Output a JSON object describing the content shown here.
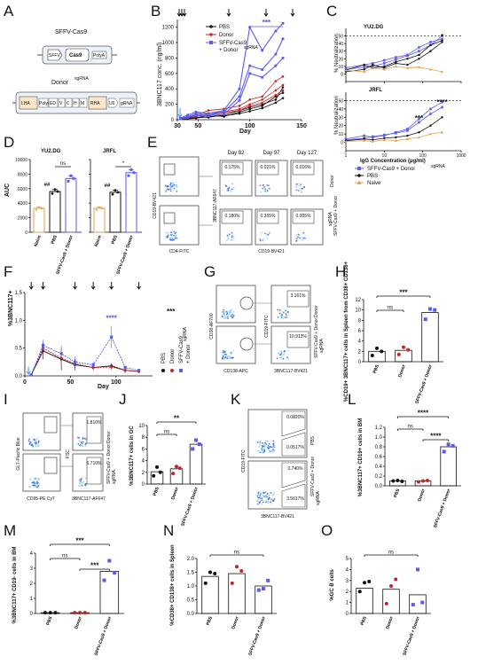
{
  "colors": {
    "naive": "#e7a04b",
    "pbs": "#111111",
    "donor": "#c0262b",
    "sgrna": "#5b5bf0",
    "sgrna_light": "#8a8af5",
    "gate": "#444444"
  },
  "panels": {
    "A": "A",
    "B": "B",
    "C": "C",
    "D": "D",
    "E": "E",
    "F": "F",
    "G": "G",
    "H": "H",
    "I": "I",
    "J": "J",
    "K": "K",
    "L": "L",
    "M": "M",
    "N": "N",
    "O": "O"
  },
  "panelA": {
    "sffv_title": "SFFV-Cas9",
    "sffv_parts": [
      "SFFV",
      "Cas9",
      "PolyA"
    ],
    "donor_title": "Donor",
    "donor_sup": "sgRNA",
    "donor_parts": [
      "LHA",
      "PolyA",
      "ED",
      "V",
      "C",
      "H",
      "M",
      "RHA",
      "U6",
      "gRNA"
    ]
  },
  "chart_data": [
    {
      "panel": "B",
      "type": "line",
      "ylabel": "3BNC117 conc. (ng/ml)",
      "xlabel": "Day",
      "xlim": [
        30,
        150
      ],
      "ylim": [
        0,
        1300
      ],
      "xticks": [
        "30",
        "50",
        "100",
        "150"
      ],
      "yticks": [
        "0",
        "200",
        "400",
        "600",
        "800",
        "1000",
        "1200"
      ],
      "legend": [
        "PBS",
        "Donor",
        "SFFV-Cas9",
        "+ Donor"
      ],
      "legend_sup": "sgRNA",
      "sig": "***",
      "series": [
        {
          "group": "pbs",
          "x": [
            33,
            40,
            48,
            60,
            75,
            90,
            100,
            112,
            125,
            132
          ],
          "y": [
            20,
            25,
            20,
            60,
            40,
            100,
            140,
            180,
            300,
            350
          ]
        },
        {
          "group": "pbs",
          "x": [
            33,
            40,
            48,
            60,
            75,
            90,
            100,
            112,
            125,
            132
          ],
          "y": [
            15,
            20,
            30,
            30,
            60,
            120,
            160,
            200,
            260,
            420
          ]
        },
        {
          "group": "pbs",
          "x": [
            33,
            40,
            48,
            60,
            75,
            90,
            100,
            112,
            125,
            132
          ],
          "y": [
            10,
            10,
            20,
            40,
            50,
            80,
            110,
            150,
            220,
            280
          ]
        },
        {
          "group": "donor",
          "x": [
            33,
            40,
            48,
            60,
            75,
            90,
            100,
            112,
            125,
            132
          ],
          "y": [
            20,
            40,
            60,
            120,
            140,
            180,
            260,
            300,
            500,
            560
          ]
        },
        {
          "group": "donor",
          "x": [
            33,
            40,
            48,
            60,
            75,
            90,
            100,
            112,
            125,
            132
          ],
          "y": [
            10,
            30,
            50,
            80,
            100,
            140,
            200,
            260,
            380,
            450
          ]
        },
        {
          "group": "donor",
          "x": [
            33,
            40,
            48,
            60,
            75,
            90,
            100,
            112,
            125,
            132
          ],
          "y": [
            15,
            25,
            40,
            60,
            90,
            120,
            180,
            220,
            320,
            380
          ]
        },
        {
          "group": "sgrna",
          "x": [
            33,
            40,
            48,
            60,
            75,
            90,
            100,
            112,
            125,
            132
          ],
          "y": [
            20,
            60,
            100,
            80,
            120,
            400,
            1200,
            900,
            1150,
            1250
          ]
        },
        {
          "group": "sgrna",
          "x": [
            33,
            40,
            48,
            60,
            75,
            90,
            100,
            112,
            125,
            132
          ],
          "y": [
            15,
            40,
            80,
            60,
            100,
            300,
            700,
            650,
            850,
            1050
          ]
        },
        {
          "group": "sgrna",
          "x": [
            33,
            40,
            48,
            60,
            75,
            90,
            100,
            112,
            125,
            132
          ],
          "y": [
            10,
            30,
            60,
            50,
            70,
            250,
            600,
            550,
            700,
            800
          ]
        }
      ]
    },
    {
      "panel": "C",
      "type": "line",
      "subplots": [
        {
          "title": "YU2.DG",
          "ylabel": "% Neutralization",
          "ylim": [
            -10,
            60
          ],
          "yticks": [
            "0",
            "10",
            "20",
            "30",
            "40",
            "50"
          ],
          "sig": "*"
        },
        {
          "title": "JRFL",
          "ylabel": "% Neutralization",
          "ylim": [
            -10,
            60
          ],
          "yticks": [
            "0",
            "10",
            "20",
            "30",
            "40",
            "50"
          ],
          "sig": [
            "***",
            "****"
          ]
        }
      ],
      "xlabel": "IgG Concentration (µg/ml)",
      "xticks": [
        "1",
        "10",
        "100",
        "1000"
      ],
      "legend": [
        "SFFV-Cas9 + Donor",
        "PBS",
        "Naive"
      ],
      "legend_sup": "sgRNA"
    },
    {
      "panel": "D",
      "type": "bar",
      "ylabel": "AUC",
      "subplots": [
        {
          "title": "YU2.DG",
          "categories": [
            "Naive",
            "PBS",
            "SFFV-Cas9 + Donor"
          ],
          "values": [
            3300,
            5600,
            7400
          ],
          "sig": [
            "##",
            "ns"
          ]
        },
        {
          "title": "JRFL",
          "categories": [
            "Naive",
            "PBS",
            "SFFV-Cas9 + Donor"
          ],
          "values": [
            3300,
            5500,
            8200
          ],
          "sig": [
            "##",
            "*"
          ]
        }
      ],
      "yticks": [
        "0",
        "2000",
        "4000",
        "6000",
        "8000",
        "10000"
      ],
      "ylim": [
        0,
        10000
      ]
    },
    {
      "panel": "F",
      "type": "line",
      "ylabel": "%3BNC117+",
      "xlabel": "Day",
      "xlim": [
        0,
        140
      ],
      "ylim": [
        0,
        1.5
      ],
      "xticks": [
        "0",
        "50",
        "100"
      ],
      "yticks": [
        "0.0",
        "0.5",
        "1.0",
        "1.5"
      ],
      "sig": "****",
      "legend_sig": "***",
      "legend": [
        "PBS",
        "Donor",
        "SFFV-Cas9",
        "+ Donor"
      ],
      "legend_sup": "sgRNA",
      "series": [
        {
          "group": "pbs",
          "x": [
            7,
            20,
            40,
            55,
            75,
            95,
            110,
            125
          ],
          "y": [
            0.02,
            0.45,
            0.3,
            0.2,
            0.15,
            0.18,
            0.1,
            0.08
          ],
          "err": [
            0.02,
            0.15,
            0.2,
            0.1,
            0.05,
            0.05,
            0.05,
            0.03
          ]
        },
        {
          "group": "donor",
          "x": [
            7,
            20,
            40,
            55,
            75,
            95,
            110,
            125
          ],
          "y": [
            0.02,
            0.5,
            0.32,
            0.22,
            0.15,
            0.16,
            0.1,
            0.08
          ],
          "err": [
            0.02,
            0.1,
            0.15,
            0.1,
            0.05,
            0.05,
            0.05,
            0.03
          ]
        },
        {
          "group": "sgrna",
          "x": [
            7,
            20,
            40,
            55,
            75,
            95,
            110,
            125
          ],
          "y": [
            0.02,
            0.55,
            0.4,
            0.25,
            0.2,
            0.7,
            0.15,
            0.1
          ],
          "err": [
            0.02,
            0.1,
            0.15,
            0.1,
            0.05,
            0.2,
            0.05,
            0.03
          ]
        }
      ]
    },
    {
      "panel": "H",
      "type": "bar",
      "ylabel": "%CD19+ 3BNC117+ cells in Spleen from CD38+ CD138+",
      "categories": [
        "PBS",
        "Donor",
        "SFFV-Cas9 + Donor"
      ],
      "values": [
        2.0,
        2.2,
        9.5
      ],
      "points": [
        [
          1.2,
          2.6,
          2.0
        ],
        [
          1.4,
          2.8,
          2.3
        ],
        [
          8.2,
          10.2,
          10.0
        ]
      ],
      "ylim": [
        0,
        12
      ],
      "yticks": [
        "0",
        "2",
        "4",
        "6",
        "8",
        "10",
        "12"
      ],
      "sig": [
        "***",
        "ns"
      ]
    },
    {
      "panel": "J",
      "type": "bar",
      "ylabel": "%3BNC117+ cells in GC",
      "categories": [
        "PBS",
        "Donor",
        "SFFV-Cas9 + Donor"
      ],
      "values": [
        2.1,
        2.6,
        6.8
      ],
      "points": [
        [
          1.4,
          2.9,
          2.0
        ],
        [
          1.8,
          3.0,
          2.7
        ],
        [
          6.0,
          7.5,
          6.8
        ]
      ],
      "ylim": [
        0,
        10
      ],
      "yticks": [
        "0",
        "2",
        "4",
        "6",
        "8",
        "10"
      ],
      "sig": [
        "**",
        "ns"
      ]
    },
    {
      "panel": "L",
      "type": "bar",
      "ylabel": "%3BNC117+ CD19+ cells in BM",
      "categories": [
        "PBS",
        "Donor",
        "SFFV-Cas9 + Donor"
      ],
      "values": [
        0.1,
        0.1,
        0.8
      ],
      "points": [
        [
          0.1,
          0.11,
          0.09
        ],
        [
          0.08,
          0.1,
          0.11
        ],
        [
          0.7,
          0.85,
          0.82
        ]
      ],
      "ylim": [
        0,
        1.2
      ],
      "yticks": [
        "0.0",
        "0.2",
        "0.4",
        "0.6",
        "0.8",
        "1.0",
        "1.2"
      ],
      "sig": [
        "****",
        "ns",
        "****"
      ]
    },
    {
      "panel": "M",
      "type": "bar",
      "ylabel": "%3BNC117+ CD19- cells in BM",
      "categories": [
        "PBS",
        "Donor",
        "SFFV-Cas9 + Donor"
      ],
      "values": [
        0.05,
        0.05,
        2.8
      ],
      "points": [
        [
          0.05,
          0.05,
          0.05
        ],
        [
          0.05,
          0.05,
          0.05
        ],
        [
          2.2,
          3.5,
          2.7
        ]
      ],
      "ylim": [
        0,
        4
      ],
      "yticks": [
        "0",
        "1",
        "2",
        "3",
        "4"
      ],
      "sig": [
        "***",
        "ns",
        "***"
      ]
    },
    {
      "panel": "N",
      "type": "bar",
      "ylabel": "%CD38+ CD138+ cells in Spleen",
      "categories": [
        "PBS",
        "Donor",
        "SFFV-Cas9 + Donor"
      ],
      "values": [
        1.35,
        1.45,
        1.0
      ],
      "points": [
        [
          1.1,
          1.5,
          1.45
        ],
        [
          1.1,
          1.7,
          1.55
        ],
        [
          0.85,
          0.9,
          1.2
        ]
      ],
      "ylim": [
        0,
        2.0
      ],
      "yticks": [
        "0.0",
        "0.5",
        "1.0",
        "1.5",
        "2.0"
      ],
      "sig": [
        "ns"
      ]
    },
    {
      "panel": "O",
      "type": "bar",
      "ylabel": "%GC B cells",
      "categories": [
        "PBS",
        "Donor",
        "SFFV-Cas9 + Donor"
      ],
      "values": [
        2.3,
        2.2,
        1.7
      ],
      "points": [
        [
          2.0,
          2.8,
          2.9
        ],
        [
          0.9,
          2.5,
          3.1
        ],
        [
          0.8,
          4.0,
          1.0
        ]
      ],
      "ylim": [
        0,
        5
      ],
      "yticks": [
        "0",
        "1",
        "2",
        "3",
        "4",
        "5"
      ],
      "sig": [
        "ns"
      ]
    }
  ],
  "flow": {
    "E": {
      "days": [
        "Day 82",
        "Day 97",
        "Day 127"
      ],
      "pcts": [
        [
          "0.175%",
          "0.021%",
          "0.016%"
        ],
        [
          "0.180%",
          "0.355%",
          "0.005%"
        ]
      ],
      "x_axis": "CD4-FITC",
      "y_axis": "CD19-BV421",
      "x2": "CD19-BV421",
      "y2": "3BNC117-AF647",
      "rows": [
        "Donor",
        "SFFV-Cas9 + Donor"
      ],
      "row_sup": "sgRNA"
    },
    "G": {
      "x1": "CD138-APC",
      "y1": "CD38-AF700",
      "x2": "3BNC117-BV421",
      "y2": "CD19-FITC",
      "pcts": [
        "3.161%",
        "10.913%"
      ],
      "rows": [
        "Donor",
        "SFFV-Cas9 + Donor"
      ],
      "row_sup": "sgRNA"
    },
    "I": {
      "x1": "CD95-PE Cy7",
      "y1": "GL7-Pacific Blue",
      "x2": "3BNC117-AF647",
      "y2": "FSC",
      "pcts": [
        "1.810%",
        "6.710%"
      ],
      "rows": [
        "Donor",
        "SFFV-Cas9 + Donor"
      ],
      "row_sup": "sgRNA"
    },
    "K": {
      "x": "3BNC117-BV421",
      "y": "CD19-FITC",
      "pcts": [
        [
          "0.0820%",
          "0.0517%"
        ],
        [
          "0.740%",
          "3.5617%"
        ]
      ],
      "rows": [
        "PBS",
        "SFFV-Cas9 + Donor"
      ],
      "row_sup": "sgRNA"
    }
  }
}
